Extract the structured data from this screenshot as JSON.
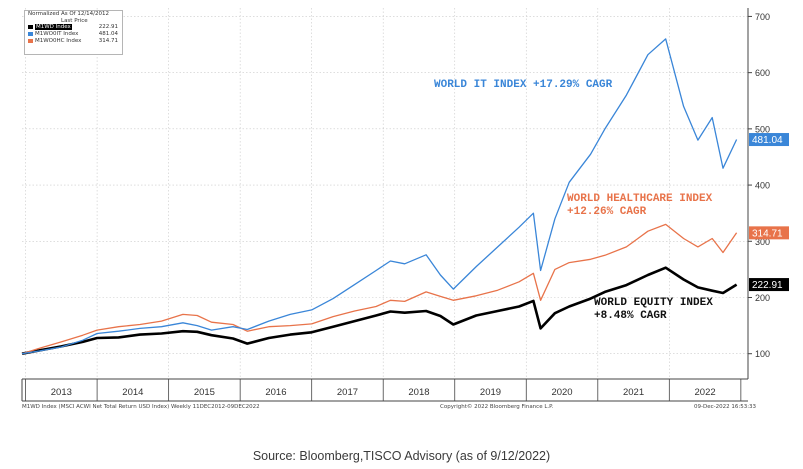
{
  "legend": {
    "header_line1": "Normalized As Of 12/14/2012",
    "header_line2": "Last Price",
    "items": [
      {
        "name": "M1WD Index",
        "value": "222.91",
        "color": "#000000"
      },
      {
        "name": "M1WO0IT Index",
        "value": "481.04",
        "color": "#3a86d8"
      },
      {
        "name": "M1WO0HC Index",
        "value": "314.71",
        "color": "#e8734a"
      }
    ]
  },
  "annotations": {
    "it": "WORLD IT INDEX +17.29% CAGR",
    "hc_line1": "WORLD HEALTHCARE INDEX",
    "hc_line2": "+12.26% CAGR",
    "eq_line1": "WORLD EQUITY INDEX",
    "eq_line2": "+8.48% CAGR"
  },
  "footer": {
    "left": "M1WD Index (MSCI ACWI Net Total Return USD Index)  Weekly 11DEC2012-09DEC2022",
    "mid": "Copyright© 2022 Bloomberg Finance L.P.",
    "right": "09-Dec-2022 16:53:33"
  },
  "source": "Source: Bloomberg,TISCO Advisory  (as of 9/12/2022)",
  "chart_data": {
    "type": "line",
    "x": [
      2012.95,
      2013.2,
      2013.5,
      2013.8,
      2014.0,
      2014.3,
      2014.6,
      2014.9,
      2015.2,
      2015.4,
      2015.6,
      2015.9,
      2016.1,
      2016.4,
      2016.7,
      2017.0,
      2017.3,
      2017.6,
      2017.9,
      2018.1,
      2018.3,
      2018.6,
      2018.8,
      2018.98,
      2019.3,
      2019.6,
      2019.9,
      2020.1,
      2020.2,
      2020.4,
      2020.6,
      2020.9,
      2021.1,
      2021.4,
      2021.7,
      2021.95,
      2022.2,
      2022.4,
      2022.6,
      2022.75,
      2022.94
    ],
    "x_ticks": [
      "2013",
      "2014",
      "2015",
      "2016",
      "2017",
      "2018",
      "2019",
      "2020",
      "2021",
      "2022"
    ],
    "y_ticks": [
      100,
      200,
      300,
      400,
      500,
      600,
      700
    ],
    "ylim": [
      55,
      715
    ],
    "xlim": [
      2012.95,
      2023.1
    ],
    "series": [
      {
        "name": "M1WD Index",
        "color": "#000000",
        "last": "222.91",
        "values": [
          100,
          106,
          113,
          121,
          128,
          129,
          134,
          136,
          140,
          139,
          133,
          127,
          118,
          128,
          134,
          138,
          148,
          158,
          168,
          175,
          173,
          176,
          167,
          152,
          168,
          176,
          184,
          194,
          145,
          172,
          184,
          198,
          210,
          222,
          240,
          253,
          232,
          218,
          212,
          208,
          223
        ]
      },
      {
        "name": "M1WO0IT Index",
        "color": "#3a86d8",
        "last": "481.04",
        "values": [
          100,
          105,
          112,
          124,
          136,
          140,
          145,
          148,
          155,
          150,
          142,
          148,
          143,
          158,
          170,
          178,
          198,
          223,
          248,
          265,
          260,
          276,
          240,
          215,
          255,
          290,
          325,
          350,
          248,
          340,
          405,
          455,
          500,
          560,
          632,
          660,
          540,
          480,
          520,
          430,
          481
        ]
      },
      {
        "name": "M1WO0HC Index",
        "color": "#e8734a",
        "last": "314.71",
        "values": [
          100,
          110,
          121,
          133,
          142,
          148,
          152,
          158,
          170,
          168,
          156,
          152,
          140,
          148,
          150,
          153,
          166,
          176,
          184,
          195,
          193,
          210,
          202,
          195,
          203,
          213,
          228,
          243,
          195,
          250,
          262,
          268,
          275,
          290,
          318,
          330,
          305,
          290,
          305,
          280,
          315
        ]
      }
    ]
  }
}
